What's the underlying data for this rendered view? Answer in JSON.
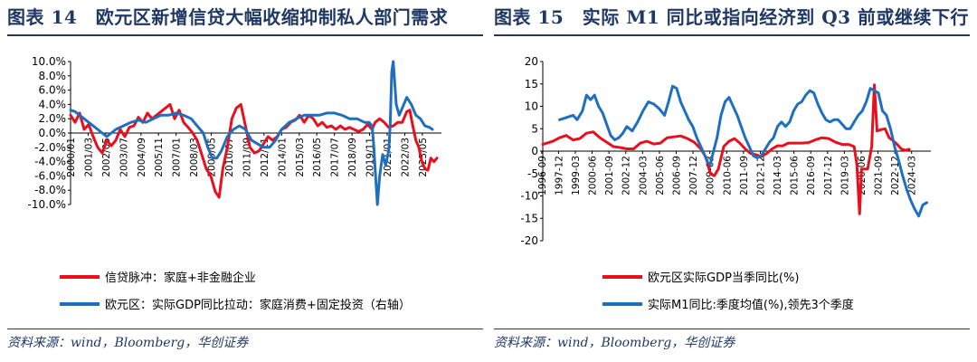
{
  "colors": {
    "red": "#e8101e",
    "blue": "#1f6fc0",
    "title": "#1f3864"
  },
  "panels": [
    {
      "title": "图表 14　欧元区新增信贷大幅收缩抑制私人部门需求",
      "source": "资料来源：wind，Bloomberg，华创证券"
    },
    {
      "title": "图表 15　实际 M1 同比或指向经济到 Q3 前或继续下行",
      "source": "资料来源：wind，Bloomberg，华创证券"
    }
  ],
  "chart_data": [
    {
      "type": "line",
      "title": "欧元区新增信贷大幅收缩抑制私人部门需求",
      "ylim": [
        -10,
        10
      ],
      "yticks": [
        "10.0%",
        "8.0%",
        "6.0%",
        "4.0%",
        "2.0%",
        "0.0%",
        "-2.0%",
        "-4.0%",
        "-6.0%",
        "-8.0%",
        "-10.0%"
      ],
      "ytick_values": [
        10,
        8,
        6,
        4,
        2,
        0,
        -2,
        -4,
        -6,
        -8,
        -10
      ],
      "xlim": [
        2000.0,
        2024.6
      ],
      "xticks": [
        "2000/01",
        "2001/03",
        "2002/05",
        "2003/07",
        "2004/09",
        "2005/11",
        "2007/01",
        "2008/03",
        "2009/05",
        "2010/07",
        "2011/09",
        "2012/11",
        "2014/01",
        "2015/03",
        "2016/05",
        "2017/07",
        "2018/09",
        "2019/11",
        "2021/01",
        "2022/03",
        "2023/05"
      ],
      "xtick_values": [
        2000.0,
        2001.17,
        2002.33,
        2003.5,
        2004.67,
        2005.83,
        2007.0,
        2008.17,
        2009.33,
        2010.5,
        2011.67,
        2012.83,
        2014.0,
        2015.17,
        2016.33,
        2017.5,
        2018.67,
        2019.83,
        2021.0,
        2022.17,
        2023.33
      ],
      "legend_position": "bottom",
      "series": [
        {
          "name": "信贷脉冲：家庭+非金融企业",
          "color": "red",
          "x": [
            2000.0,
            2000.3,
            2000.6,
            2000.9,
            2001.2,
            2001.5,
            2001.8,
            2002.1,
            2002.4,
            2002.7,
            2003.0,
            2003.3,
            2003.6,
            2003.9,
            2004.2,
            2004.5,
            2004.8,
            2005.1,
            2005.4,
            2005.7,
            2006.0,
            2006.3,
            2006.6,
            2006.9,
            2007.2,
            2007.5,
            2007.8,
            2008.1,
            2008.4,
            2008.7,
            2009.0,
            2009.3,
            2009.6,
            2009.85,
            2010.1,
            2010.4,
            2010.7,
            2011.0,
            2011.3,
            2011.6,
            2011.9,
            2012.2,
            2012.5,
            2012.8,
            2013.1,
            2013.4,
            2013.7,
            2014.0,
            2014.3,
            2014.6,
            2014.9,
            2015.2,
            2015.5,
            2015.8,
            2016.1,
            2016.4,
            2016.7,
            2017.0,
            2017.3,
            2017.6,
            2017.9,
            2018.2,
            2018.5,
            2018.8,
            2019.1,
            2019.4,
            2019.7,
            2020.0,
            2020.2,
            2020.5,
            2020.8,
            2021.1,
            2021.4,
            2021.7,
            2022.0,
            2022.3,
            2022.5,
            2022.7,
            2022.9,
            2023.1,
            2023.3,
            2023.5,
            2023.7,
            2023.9,
            2024.1,
            2024.3
          ],
          "values": [
            2.5,
            1.5,
            2.8,
            0.5,
            1.2,
            -0.5,
            -2.0,
            -2.8,
            -1.0,
            -1.8,
            -1.0,
            0.5,
            -0.5,
            0.8,
            1.0,
            2.2,
            1.5,
            2.8,
            2.0,
            2.5,
            3.0,
            3.5,
            4.0,
            2.0,
            3.2,
            1.5,
            0.8,
            0.0,
            -1.0,
            -3.0,
            -5.0,
            -6.0,
            -8.2,
            -9.0,
            -5.0,
            -2.0,
            2.0,
            3.5,
            4.0,
            1.0,
            -2.0,
            -2.8,
            -2.5,
            -1.5,
            -0.5,
            -1.0,
            -0.5,
            0.5,
            0.8,
            1.5,
            1.8,
            2.5,
            1.5,
            2.5,
            2.0,
            1.0,
            1.5,
            0.8,
            1.0,
            0.5,
            1.0,
            0.5,
            0.8,
            0.5,
            0.2,
            0.5,
            1.2,
            0.5,
            1.5,
            2.0,
            1.5,
            0.8,
            1.0,
            1.5,
            1.5,
            3.0,
            3.2,
            1.0,
            -1.0,
            -2.0,
            -4.0,
            -5.0,
            -5.2,
            -3.5,
            -4.0,
            -3.5
          ]
        },
        {
          "name": "欧元区：实际GDP同比拉动：家庭消费+固定投资（右轴）",
          "color": "blue",
          "x": [
            2000.0,
            2000.3,
            2000.6,
            2000.9,
            2001.2,
            2001.5,
            2001.8,
            2002.1,
            2002.4,
            2002.7,
            2003.0,
            2003.5,
            2004.0,
            2004.5,
            2005.0,
            2005.5,
            2006.0,
            2006.5,
            2007.0,
            2007.5,
            2008.0,
            2008.4,
            2008.8,
            2009.1,
            2009.4,
            2009.7,
            2010.0,
            2010.4,
            2010.8,
            2011.2,
            2011.6,
            2012.0,
            2012.4,
            2012.8,
            2013.2,
            2013.6,
            2014.0,
            2014.5,
            2015.0,
            2015.5,
            2016.0,
            2016.5,
            2017.0,
            2017.5,
            2018.0,
            2018.5,
            2019.0,
            2019.5,
            2019.8,
            2020.0,
            2020.1,
            2020.2,
            2020.35,
            2020.5,
            2020.7,
            2020.9,
            2021.1,
            2021.2,
            2021.3,
            2021.4,
            2021.6,
            2021.8,
            2022.0,
            2022.3,
            2022.6,
            2022.9,
            2023.2,
            2023.5,
            2023.8,
            2024.0
          ],
          "values": [
            3.2,
            3.0,
            2.5,
            2.0,
            1.5,
            1.0,
            0.5,
            0.0,
            -0.5,
            0.0,
            0.5,
            1.0,
            1.5,
            1.8,
            1.5,
            2.0,
            2.5,
            2.5,
            2.8,
            2.5,
            2.0,
            1.0,
            0.0,
            -2.0,
            -3.5,
            -3.5,
            -2.5,
            -0.5,
            0.5,
            1.0,
            0.5,
            -1.0,
            -1.5,
            -2.0,
            -2.0,
            -1.0,
            0.5,
            1.5,
            2.0,
            2.5,
            2.5,
            2.5,
            2.8,
            2.8,
            2.5,
            2.0,
            2.0,
            1.5,
            1.5,
            1.0,
            -1.5,
            -5.0,
            -10.0,
            -6.0,
            -3.0,
            -4.5,
            -2.5,
            1.0,
            8.5,
            10.0,
            4.0,
            2.5,
            3.5,
            5.0,
            4.0,
            2.5,
            2.0,
            1.0,
            0.8,
            0.5
          ]
        }
      ]
    },
    {
      "type": "line",
      "title": "实际 M1 同比或指向经济到 Q3 前或继续下行",
      "ylim": [
        -20,
        20
      ],
      "yticks": [
        "20",
        "15",
        "10",
        "5",
        "0",
        "-5",
        "-10",
        "-15",
        "-20"
      ],
      "ytick_values": [
        20,
        15,
        10,
        5,
        0,
        -5,
        -10,
        -15,
        -20
      ],
      "xlim": [
        1996.75,
        2025.6
      ],
      "xticks": [
        "1996-09",
        "1997-12",
        "1999-03",
        "2000-06",
        "2001-09",
        "2002-12",
        "2004-03",
        "2005-06",
        "2006-09",
        "2007-12",
        "2009-03",
        "2010-06",
        "2011-09",
        "2012-12",
        "2014-03",
        "2015-06",
        "2016-09",
        "2017-12",
        "2019-03",
        "2020-06",
        "2021-09",
        "2022-12",
        "2024-03"
      ],
      "xtick_values": [
        1996.67,
        1997.92,
        1999.17,
        2000.42,
        2001.67,
        2002.92,
        2004.17,
        2005.42,
        2006.67,
        2007.92,
        2009.17,
        2010.42,
        2011.67,
        2012.92,
        2014.17,
        2015.42,
        2016.67,
        2017.92,
        2019.17,
        2020.42,
        2021.67,
        2022.92,
        2024.17
      ],
      "legend_position": "bottom",
      "series": [
        {
          "name": "欧元区实际GDP当季同比(%)",
          "color": "red",
          "x": [
            1996.75,
            1997.5,
            1998.0,
            1998.5,
            1999.0,
            1999.5,
            2000.0,
            2000.5,
            2001.0,
            2001.5,
            2002.0,
            2002.5,
            2003.0,
            2003.5,
            2004.0,
            2004.5,
            2005.0,
            2005.5,
            2006.0,
            2006.5,
            2007.0,
            2007.5,
            2008.0,
            2008.5,
            2008.9,
            2009.2,
            2009.5,
            2009.8,
            2010.2,
            2010.6,
            2011.0,
            2011.4,
            2011.8,
            2012.2,
            2012.6,
            2013.0,
            2013.4,
            2013.8,
            2014.2,
            2014.6,
            2015.0,
            2015.5,
            2016.0,
            2016.5,
            2017.0,
            2017.5,
            2018.0,
            2018.5,
            2019.0,
            2019.5,
            2019.9,
            2020.1,
            2020.3,
            2020.45,
            2020.6,
            2020.9,
            2021.2,
            2021.4,
            2021.6,
            2021.9,
            2022.2,
            2022.5,
            2022.8,
            2023.1,
            2023.4,
            2023.7,
            2024.0
          ],
          "values": [
            1.5,
            2.2,
            3.0,
            3.5,
            2.5,
            2.8,
            4.0,
            4.3,
            3.0,
            2.0,
            1.0,
            0.8,
            0.5,
            0.5,
            1.8,
            2.2,
            1.6,
            1.8,
            3.0,
            3.2,
            3.4,
            2.8,
            2.0,
            0.5,
            -1.5,
            -5.0,
            -5.5,
            -4.0,
            1.0,
            2.2,
            2.8,
            1.8,
            0.5,
            -0.5,
            -0.8,
            -1.2,
            -0.5,
            0.5,
            1.2,
            1.2,
            1.8,
            1.8,
            1.8,
            1.9,
            2.5,
            3.0,
            2.8,
            2.0,
            1.5,
            1.5,
            1.0,
            -3.0,
            -14.0,
            -4.0,
            -4.0,
            -4.0,
            1.0,
            14.8,
            4.5,
            4.8,
            5.0,
            3.0,
            2.3,
            1.5,
            0.5,
            0.2,
            0.4
          ]
        },
        {
          "name": "实际M1同比:季度均值(%),领先3个季度",
          "color": "blue",
          "x": [
            1998.0,
            1998.5,
            1999.0,
            1999.3,
            1999.7,
            2000.0,
            2000.3,
            2000.6,
            2000.9,
            2001.2,
            2001.5,
            2001.8,
            2002.1,
            2002.4,
            2002.7,
            2003.0,
            2003.4,
            2003.8,
            2004.2,
            2004.6,
            2005.0,
            2005.4,
            2005.8,
            2006.1,
            2006.4,
            2006.7,
            2007.0,
            2007.3,
            2007.6,
            2007.9,
            2008.2,
            2008.5,
            2008.8,
            2009.0,
            2009.2,
            2009.4,
            2009.7,
            2010.0,
            2010.3,
            2010.6,
            2010.9,
            2011.2,
            2011.5,
            2011.8,
            2012.1,
            2012.4,
            2012.7,
            2013.0,
            2013.3,
            2013.6,
            2013.9,
            2014.2,
            2014.5,
            2014.8,
            2015.1,
            2015.4,
            2015.7,
            2016.0,
            2016.3,
            2016.6,
            2016.9,
            2017.2,
            2017.5,
            2017.8,
            2018.1,
            2018.4,
            2018.7,
            2019.0,
            2019.3,
            2019.6,
            2019.9,
            2020.2,
            2020.5,
            2020.8,
            2021.1,
            2021.4,
            2021.7,
            2022.0,
            2022.3,
            2022.6,
            2022.9,
            2023.2,
            2023.5,
            2023.8,
            2024.1,
            2024.4,
            2024.7,
            2025.0,
            2025.3
          ],
          "values": [
            7.0,
            7.5,
            8.0,
            7.0,
            9.0,
            12.5,
            11.5,
            12.5,
            10.0,
            8.5,
            6.0,
            3.5,
            2.5,
            3.0,
            4.0,
            5.5,
            4.5,
            6.5,
            9.0,
            11.0,
            10.5,
            9.5,
            8.0,
            11.0,
            14.5,
            14.0,
            11.0,
            9.0,
            7.0,
            5.5,
            3.0,
            1.0,
            -1.0,
            -2.5,
            -3.0,
            -0.5,
            3.0,
            8.0,
            11.0,
            12.0,
            10.0,
            8.0,
            5.5,
            3.0,
            1.0,
            -1.0,
            -1.5,
            -1.0,
            0.5,
            2.0,
            3.0,
            5.5,
            6.5,
            5.5,
            6.5,
            9.0,
            10.5,
            11.0,
            12.5,
            13.5,
            13.0,
            10.5,
            8.5,
            7.0,
            6.5,
            7.0,
            7.0,
            6.0,
            5.0,
            5.0,
            6.5,
            8.0,
            9.0,
            11.0,
            14.0,
            13.5,
            13.0,
            9.0,
            8.0,
            5.0,
            1.0,
            -2.0,
            -5.5,
            -8.5,
            -11.0,
            -13.0,
            -14.5,
            -12.0,
            -11.5
          ]
        }
      ]
    }
  ]
}
